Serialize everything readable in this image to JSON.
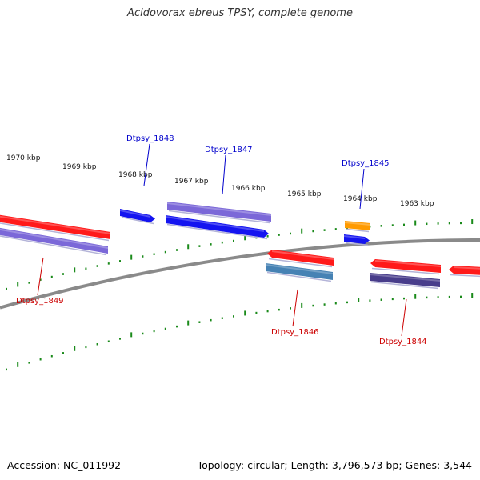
{
  "title": "Acidovorax ebreus TPSY, complete genome",
  "footer": {
    "accession": "Accession: NC_011992",
    "topology": "Topology: circular; Length: 3,796,573 bp; Genes: 3,544"
  },
  "scale": {
    "tick_labels": [
      "1970 kbp",
      "1969 kbp",
      "1968 kbp",
      "1967 kbp",
      "1966 kbp",
      "1965 kbp",
      "1964 kbp",
      "1963 kbp"
    ],
    "tick_color": "#1a8a1a"
  },
  "colors": {
    "backbone": "#8a8a8a",
    "cds_red": "#ff1a1a",
    "cds_lavender": "#7b68d8",
    "cds_blue": "#1414f0",
    "cds_steelblue": "#4682b4",
    "cds_orange": "#ff9a00",
    "cds_darkslate": "#483d8b",
    "label_forward": "#0000cc",
    "label_reverse": "#cc0000"
  },
  "gene_labels": [
    {
      "text": "Dtpsy_1848",
      "strand": "forward"
    },
    {
      "text": "Dtpsy_1847",
      "strand": "forward"
    },
    {
      "text": "Dtpsy_1845",
      "strand": "forward"
    },
    {
      "text": "Dtpsy_1849",
      "strand": "reverse"
    },
    {
      "text": "Dtpsy_1846",
      "strand": "reverse"
    },
    {
      "text": "Dtpsy_1844",
      "strand": "reverse"
    }
  ]
}
